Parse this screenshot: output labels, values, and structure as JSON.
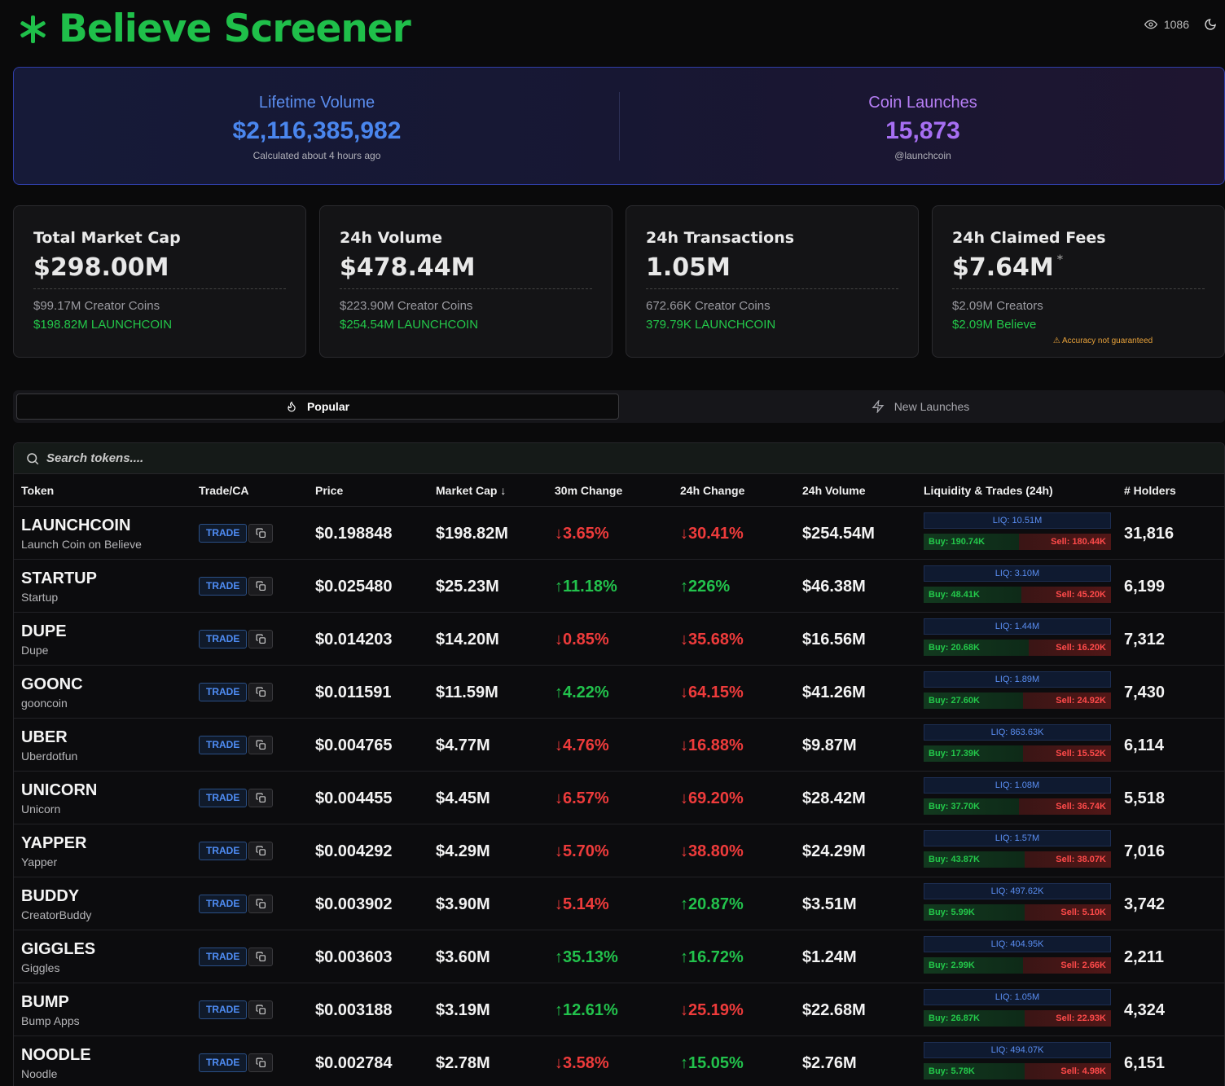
{
  "header": {
    "brand": "Believe Screener",
    "viewers": "1086"
  },
  "banner": {
    "lifetime_title": "Lifetime Volume",
    "lifetime_value": "$2,116,385,982",
    "lifetime_sub": "Calculated about 4 hours ago",
    "launches_title": "Coin Launches",
    "launches_value": "15,873",
    "launches_sub": "@launchcoin"
  },
  "stats": [
    {
      "title": "Total Market Cap",
      "value": "$298.00M",
      "line1": "$99.17M Creator Coins",
      "line2": "$198.82M LAUNCHCOIN"
    },
    {
      "title": "24h Volume",
      "value": "$478.44M",
      "line1": "$223.90M Creator Coins",
      "line2": "$254.54M LAUNCHCOIN"
    },
    {
      "title": "24h Transactions",
      "value": "1.05M",
      "line1": "672.66K Creator Coins",
      "line2": "379.79K LAUNCHCOIN"
    },
    {
      "title": "24h Claimed Fees",
      "value": "$7.64M",
      "star": "*",
      "line1": "$2.09M Creators",
      "line2": "$2.09M Believe",
      "warning": "⚠ Accuracy not guaranteed"
    }
  ],
  "tabs": {
    "popular": "Popular",
    "new_launches": "New Launches"
  },
  "search": {
    "placeholder": "Search tokens...."
  },
  "columns": {
    "token": "Token",
    "trade": "Trade/CA",
    "price": "Price",
    "mcap": "Market Cap ↓",
    "ch30": "30m Change",
    "ch24": "24h Change",
    "vol": "24h Volume",
    "liq": "Liquidity & Trades (24h)",
    "holders": "# Holders"
  },
  "trade_label": "TRADE",
  "rows": [
    {
      "symbol": "LAUNCHCOIN",
      "name": "Launch Coin on Believe",
      "price": "$0.198848",
      "mcap": "$198.82M",
      "ch30": "↓3.65%",
      "ch30_dir": "down",
      "ch24": "↓30.41%",
      "ch24_dir": "down",
      "vol": "$254.54M",
      "liq": "LIQ: 10.51M",
      "buy": "Buy: 190.74K",
      "sell": "Sell: 180.44K",
      "buy_frac": 0.51,
      "holders": "31,816"
    },
    {
      "symbol": "STARTUP",
      "name": "Startup",
      "price": "$0.025480",
      "mcap": "$25.23M",
      "ch30": "↑11.18%",
      "ch30_dir": "up",
      "ch24": "↑226%",
      "ch24_dir": "up",
      "vol": "$46.38M",
      "liq": "LIQ: 3.10M",
      "buy": "Buy: 48.41K",
      "sell": "Sell: 45.20K",
      "buy_frac": 0.52,
      "holders": "6,199"
    },
    {
      "symbol": "DUPE",
      "name": "Dupe",
      "price": "$0.014203",
      "mcap": "$14.20M",
      "ch30": "↓0.85%",
      "ch30_dir": "down",
      "ch24": "↓35.68%",
      "ch24_dir": "down",
      "vol": "$16.56M",
      "liq": "LIQ: 1.44M",
      "buy": "Buy: 20.68K",
      "sell": "Sell: 16.20K",
      "buy_frac": 0.56,
      "holders": "7,312"
    },
    {
      "symbol": "GOONC",
      "name": "gooncoin",
      "price": "$0.011591",
      "mcap": "$11.59M",
      "ch30": "↑4.22%",
      "ch30_dir": "up",
      "ch24": "↓64.15%",
      "ch24_dir": "down",
      "vol": "$41.26M",
      "liq": "LIQ: 1.89M",
      "buy": "Buy: 27.60K",
      "sell": "Sell: 24.92K",
      "buy_frac": 0.53,
      "holders": "7,430"
    },
    {
      "symbol": "UBER",
      "name": "Uberdotfun",
      "price": "$0.004765",
      "mcap": "$4.77M",
      "ch30": "↓4.76%",
      "ch30_dir": "down",
      "ch24": "↓16.88%",
      "ch24_dir": "down",
      "vol": "$9.87M",
      "liq": "LIQ: 863.63K",
      "buy": "Buy: 17.39K",
      "sell": "Sell: 15.52K",
      "buy_frac": 0.53,
      "holders": "6,114"
    },
    {
      "symbol": "UNICORN",
      "name": "Unicorn",
      "price": "$0.004455",
      "mcap": "$4.45M",
      "ch30": "↓6.57%",
      "ch30_dir": "down",
      "ch24": "↓69.20%",
      "ch24_dir": "down",
      "vol": "$28.42M",
      "liq": "LIQ: 1.08M",
      "buy": "Buy: 37.70K",
      "sell": "Sell: 36.74K",
      "buy_frac": 0.51,
      "holders": "5,518"
    },
    {
      "symbol": "YAPPER",
      "name": "Yapper",
      "price": "$0.004292",
      "mcap": "$4.29M",
      "ch30": "↓5.70%",
      "ch30_dir": "down",
      "ch24": "↓38.80%",
      "ch24_dir": "down",
      "vol": "$24.29M",
      "liq": "LIQ: 1.57M",
      "buy": "Buy: 43.87K",
      "sell": "Sell: 38.07K",
      "buy_frac": 0.54,
      "holders": "7,016"
    },
    {
      "symbol": "BUDDY",
      "name": "CreatorBuddy",
      "price": "$0.003902",
      "mcap": "$3.90M",
      "ch30": "↓5.14%",
      "ch30_dir": "down",
      "ch24": "↑20.87%",
      "ch24_dir": "up",
      "vol": "$3.51M",
      "liq": "LIQ: 497.62K",
      "buy": "Buy: 5.99K",
      "sell": "Sell: 5.10K",
      "buy_frac": 0.54,
      "holders": "3,742"
    },
    {
      "symbol": "GIGGLES",
      "name": "Giggles",
      "price": "$0.003603",
      "mcap": "$3.60M",
      "ch30": "↑35.13%",
      "ch30_dir": "up",
      "ch24": "↑16.72%",
      "ch24_dir": "up",
      "vol": "$1.24M",
      "liq": "LIQ: 404.95K",
      "buy": "Buy: 2.99K",
      "sell": "Sell: 2.66K",
      "buy_frac": 0.53,
      "holders": "2,211"
    },
    {
      "symbol": "BUMP",
      "name": "Bump Apps",
      "price": "$0.003188",
      "mcap": "$3.19M",
      "ch30": "↑12.61%",
      "ch30_dir": "up",
      "ch24": "↓25.19%",
      "ch24_dir": "down",
      "vol": "$22.68M",
      "liq": "LIQ: 1.05M",
      "buy": "Buy: 26.87K",
      "sell": "Sell: 22.93K",
      "buy_frac": 0.54,
      "holders": "4,324"
    },
    {
      "symbol": "NOODLE",
      "name": "Noodle",
      "price": "$0.002784",
      "mcap": "$2.78M",
      "ch30": "↓3.58%",
      "ch30_dir": "down",
      "ch24": "↑15.05%",
      "ch24_dir": "up",
      "vol": "$2.76M",
      "liq": "LIQ: 494.07K",
      "buy": "Buy: 5.78K",
      "sell": "Sell: 4.98K",
      "buy_frac": 0.54,
      "holders": "6,151"
    }
  ],
  "colors": {
    "brand": "#1fbf4a",
    "up": "#22c24c",
    "down": "#ee3b3b",
    "trade": "#4f8df5"
  }
}
